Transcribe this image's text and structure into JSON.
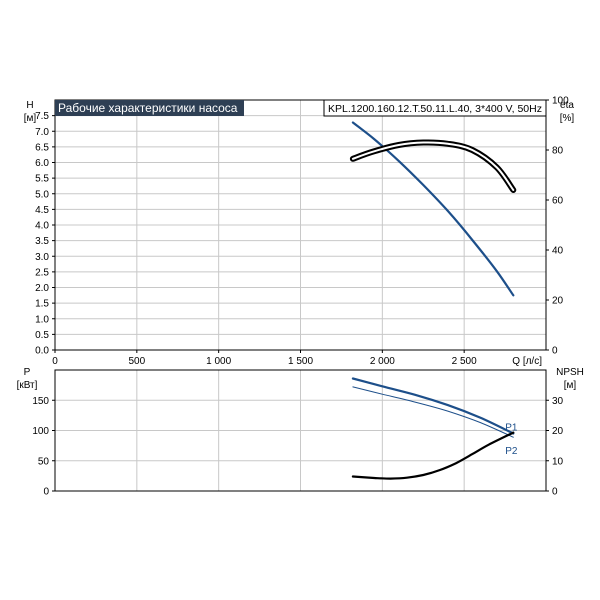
{
  "colors": {
    "head": "#1d4f8a",
    "eta": "#000000",
    "p1": "#1d4f8a",
    "p2": "#1d4f8a",
    "npsh": "#000000",
    "title_bg": "#2e3f54",
    "grid": "#c8c8c8"
  },
  "chart_data": [
    {
      "type": "line",
      "title": "Рабочие характеристики насоса",
      "model": "KPL.1200.160.12.T.50.11.L.40, 3*400 V, 50Hz",
      "ylabel": "H",
      "yunit": "[м]",
      "y2label": "eta",
      "y2unit": "[%]",
      "xlabel": "Q [л/с]",
      "xlim": [
        0,
        3000
      ],
      "ylim": [
        0,
        8
      ],
      "y2lim": [
        0,
        100
      ],
      "xticks": [
        "0",
        "500",
        "1 000",
        "1 500",
        "2 000",
        "2 500"
      ],
      "xtick_values": [
        0,
        500,
        1000,
        1500,
        2000,
        2500
      ],
      "yticks": [
        "0.0",
        "0.5",
        "1.0",
        "1.5",
        "2.0",
        "2.5",
        "3.0",
        "3.5",
        "4.0",
        "4.5",
        "5.0",
        "5.5",
        "6.0",
        "6.5",
        "7.0",
        "7.5"
      ],
      "y2ticks": [
        "0",
        "20",
        "40",
        "60",
        "80",
        "100"
      ],
      "grid": true,
      "series": [
        {
          "key": "head",
          "axis": "left",
          "style": "single",
          "x": [
            1820,
            1950,
            2100,
            2250,
            2400,
            2550,
            2700,
            2800
          ],
          "y": [
            7.28,
            6.75,
            6.05,
            5.28,
            4.45,
            3.52,
            2.52,
            1.75
          ]
        },
        {
          "key": "eta",
          "axis": "right",
          "style": "double",
          "x": [
            1820,
            1950,
            2100,
            2250,
            2400,
            2550,
            2700,
            2800
          ],
          "y": [
            76.5,
            79.5,
            82,
            83,
            82.5,
            80,
            73,
            64
          ]
        }
      ]
    },
    {
      "type": "line",
      "ylabel": "P",
      "yunit": "[кВт]",
      "y2label": "NPSH",
      "y2unit": "[м]",
      "xlim": [
        0,
        3000
      ],
      "ylim": [
        0,
        200
      ],
      "y2lim": [
        0,
        40
      ],
      "yticks": [
        "0",
        "50",
        "100",
        "150"
      ],
      "y2ticks": [
        "0",
        "10",
        "20",
        "30"
      ],
      "grid": true,
      "series": [
        {
          "key": "p1",
          "name": "P1",
          "axis": "left",
          "style": "thick",
          "x": [
            1820,
            2000,
            2200,
            2400,
            2600,
            2800
          ],
          "y": [
            186,
            173,
            159,
            142,
            121,
            95
          ]
        },
        {
          "key": "p2",
          "name": "P2",
          "axis": "left",
          "style": "thin",
          "x": [
            1820,
            2000,
            2200,
            2400,
            2600,
            2800
          ],
          "y": [
            172,
            160,
            147,
            132,
            113,
            89
          ]
        },
        {
          "key": "npsh",
          "axis": "right",
          "style": "thick",
          "x": [
            1820,
            1950,
            2050,
            2150,
            2250,
            2350,
            2450,
            2550,
            2650,
            2800
          ],
          "y": [
            4.8,
            4.3,
            4.1,
            4.4,
            5.3,
            6.9,
            9.2,
            12.2,
            15.3,
            19.3
          ]
        }
      ]
    }
  ]
}
